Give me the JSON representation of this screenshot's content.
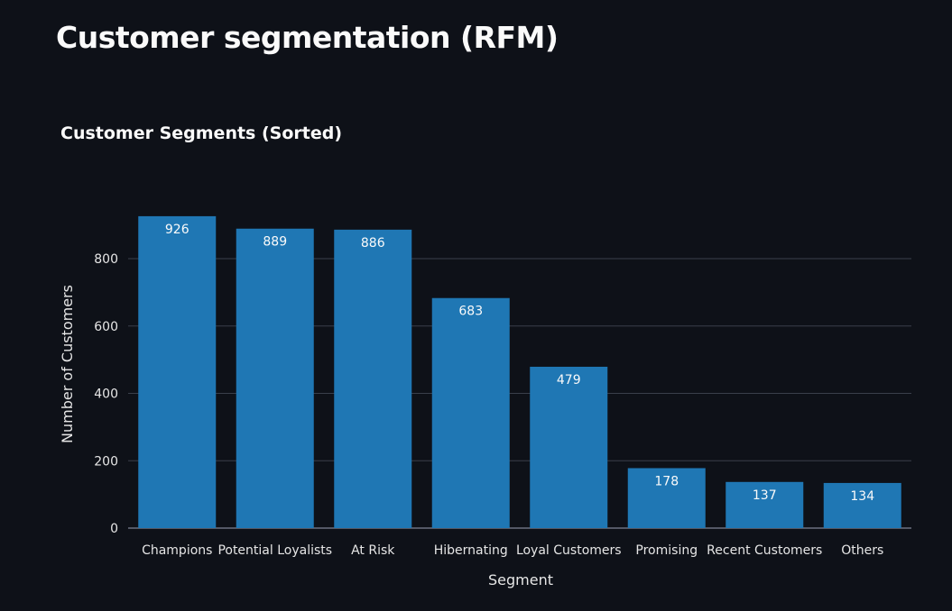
{
  "page": {
    "title": "Customer segmentation (RFM)"
  },
  "chart_data": {
    "type": "bar",
    "title": "Customer Segments (Sorted)",
    "xlabel": "Segment",
    "ylabel": "Number of Customers",
    "categories": [
      "Champions",
      "Potential Loyalists",
      "At Risk",
      "Hibernating",
      "Loyal Customers",
      "Promising",
      "Recent Customers",
      "Others"
    ],
    "values": [
      926,
      889,
      886,
      683,
      479,
      178,
      137,
      134
    ],
    "yticks": [
      0,
      200,
      400,
      600,
      800
    ],
    "ylim": [
      0,
      926
    ],
    "grid": true,
    "data_labels": true,
    "colors": {
      "bar": "#1f77b4",
      "background": "#0e1118",
      "grid": "#3a3f4b",
      "text": "#fafafa",
      "axis_text": "#e6e6e6"
    }
  }
}
